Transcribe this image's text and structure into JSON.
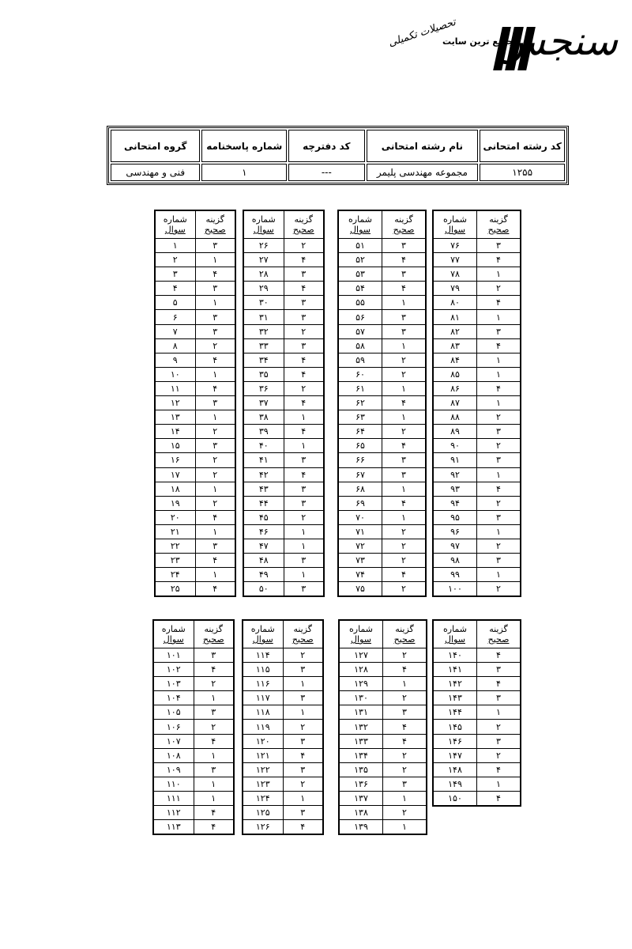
{
  "logo": {
    "brand": "سنجش",
    "tagline": "جامع ترین سایت",
    "script_text": "تحصیلات تکمیلی"
  },
  "info": {
    "headers": [
      "کد رشته امتحانی",
      "نام رشته امتحانی",
      "کد دفترچه",
      "شماره پاسخنامه",
      "گروه امتحانی"
    ],
    "values": [
      "۱۲۵۵",
      "مجموعه مهندسی پلیمر",
      "---",
      "۱",
      "فنی و مهندسی"
    ]
  },
  "column_headers": {
    "number": [
      "شماره",
      "سوال"
    ],
    "answer": [
      "گزینه",
      "صحیح"
    ]
  },
  "answer_blocks": [
    {
      "numbers": [
        "۱",
        "۲",
        "۳",
        "۴",
        "۵",
        "۶",
        "۷",
        "۸",
        "۹",
        "۱۰",
        "۱۱",
        "۱۲",
        "۱۳",
        "۱۴",
        "۱۵",
        "۱۶",
        "۱۷",
        "۱۸",
        "۱۹",
        "۲۰",
        "۲۱",
        "۲۲",
        "۲۳",
        "۲۴",
        "۲۵"
      ],
      "answers": [
        "۳",
        "۱",
        "۴",
        "۳",
        "۱",
        "۳",
        "۳",
        "۲",
        "۴",
        "۱",
        "۴",
        "۳",
        "۱",
        "۲",
        "۳",
        "۲",
        "۲",
        "۱",
        "۲",
        "۴",
        "۱",
        "۳",
        "۴",
        "۱",
        "۴"
      ]
    },
    {
      "numbers": [
        "۲۶",
        "۲۷",
        "۲۸",
        "۲۹",
        "۳۰",
        "۳۱",
        "۳۲",
        "۳۳",
        "۳۴",
        "۳۵",
        "۳۶",
        "۳۷",
        "۳۸",
        "۳۹",
        "۴۰",
        "۴۱",
        "۴۲",
        "۴۳",
        "۴۴",
        "۴۵",
        "۴۶",
        "۴۷",
        "۴۸",
        "۴۹",
        "۵۰"
      ],
      "answers": [
        "۲",
        "۴",
        "۳",
        "۴",
        "۳",
        "۳",
        "۲",
        "۳",
        "۴",
        "۴",
        "۲",
        "۴",
        "۱",
        "۴",
        "۱",
        "۳",
        "۴",
        "۳",
        "۳",
        "۲",
        "۱",
        "۱",
        "۳",
        "۱",
        "۳"
      ]
    },
    {
      "numbers": [
        "۵۱",
        "۵۲",
        "۵۳",
        "۵۴",
        "۵۵",
        "۵۶",
        "۵۷",
        "۵۸",
        "۵۹",
        "۶۰",
        "۶۱",
        "۶۲",
        "۶۳",
        "۶۴",
        "۶۵",
        "۶۶",
        "۶۷",
        "۶۸",
        "۶۹",
        "۷۰",
        "۷۱",
        "۷۲",
        "۷۳",
        "۷۴",
        "۷۵"
      ],
      "answers": [
        "۳",
        "۴",
        "۳",
        "۴",
        "۱",
        "۳",
        "۳",
        "۱",
        "۲",
        "۲",
        "۱",
        "۴",
        "۱",
        "۲",
        "۴",
        "۳",
        "۳",
        "۱",
        "۴",
        "۱",
        "۲",
        "۲",
        "۲",
        "۴",
        "۲"
      ]
    },
    {
      "numbers": [
        "۷۶",
        "۷۷",
        "۷۸",
        "۷۹",
        "۸۰",
        "۸۱",
        "۸۲",
        "۸۳",
        "۸۴",
        "۸۵",
        "۸۶",
        "۸۷",
        "۸۸",
        "۸۹",
        "۹۰",
        "۹۱",
        "۹۲",
        "۹۳",
        "۹۴",
        "۹۵",
        "۹۶",
        "۹۷",
        "۹۸",
        "۹۹",
        "۱۰۰"
      ],
      "answers": [
        "۳",
        "۴",
        "۱",
        "۲",
        "۴",
        "۱",
        "۳",
        "۴",
        "۱",
        "۱",
        "۴",
        "۱",
        "۲",
        "۳",
        "۲",
        "۳",
        "۱",
        "۴",
        "۲",
        "۳",
        "۱",
        "۲",
        "۳",
        "۱",
        "۲"
      ]
    },
    {
      "numbers": [
        "۱۰۱",
        "۱۰۲",
        "۱۰۳",
        "۱۰۴",
        "۱۰۵",
        "۱۰۶",
        "۱۰۷",
        "۱۰۸",
        "۱۰۹",
        "۱۱۰",
        "۱۱۱",
        "۱۱۲",
        "۱۱۳"
      ],
      "answers": [
        "۳",
        "۴",
        "۲",
        "۱",
        "۳",
        "۲",
        "۴",
        "۱",
        "۳",
        "۱",
        "۱",
        "۴",
        "۴"
      ]
    },
    {
      "numbers": [
        "۱۱۴",
        "۱۱۵",
        "۱۱۶",
        "۱۱۷",
        "۱۱۸",
        "۱۱۹",
        "۱۲۰",
        "۱۲۱",
        "۱۲۲",
        "۱۲۳",
        "۱۲۴",
        "۱۲۵",
        "۱۲۶"
      ],
      "answers": [
        "۲",
        "۳",
        "۱",
        "۳",
        "۱",
        "۲",
        "۳",
        "۴",
        "۳",
        "۲",
        "۱",
        "۳",
        "۴"
      ]
    },
    {
      "numbers": [
        "۱۲۷",
        "۱۲۸",
        "۱۲۹",
        "۱۳۰",
        "۱۳۱",
        "۱۳۲",
        "۱۳۳",
        "۱۳۴",
        "۱۳۵",
        "۱۳۶",
        "۱۳۷",
        "۱۳۸",
        "۱۳۹"
      ],
      "answers": [
        "۲",
        "۴",
        "۱",
        "۲",
        "۳",
        "۴",
        "۴",
        "۲",
        "۲",
        "۳",
        "۱",
        "۲",
        "۱"
      ]
    },
    {
      "numbers": [
        "۱۴۰",
        "۱۴۱",
        "۱۴۲",
        "۱۴۳",
        "۱۴۴",
        "۱۴۵",
        "۱۴۶",
        "۱۴۷",
        "۱۴۸",
        "۱۴۹",
        "۱۵۰"
      ],
      "answers": [
        "۴",
        "۳",
        "۴",
        "۳",
        "۱",
        "۲",
        "۳",
        "۲",
        "۴",
        "۱",
        "۴"
      ]
    }
  ]
}
